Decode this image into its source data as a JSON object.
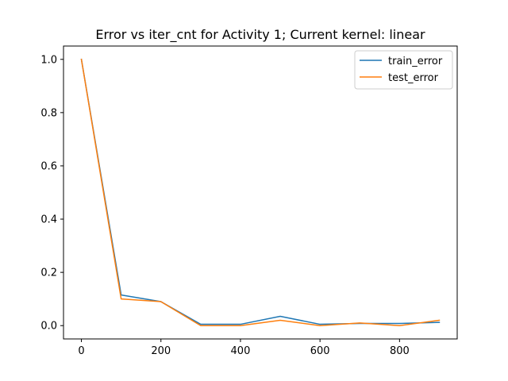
{
  "chart_data": {
    "type": "line",
    "title": "Error vs iter_cnt for Activity 1; Current kernel: linear",
    "xlabel": "",
    "ylabel": "",
    "x": [
      0,
      100,
      200,
      300,
      400,
      500,
      600,
      700,
      800,
      900
    ],
    "series": [
      {
        "name": "train_error",
        "color": "#1f77b4",
        "values": [
          1.0,
          0.115,
          0.09,
          0.005,
          0.005,
          0.035,
          0.005,
          0.008,
          0.008,
          0.012
        ]
      },
      {
        "name": "test_error",
        "color": "#ff7f0e",
        "values": [
          1.0,
          0.1,
          0.09,
          0.0,
          0.0,
          0.02,
          0.0,
          0.01,
          0.0,
          0.02
        ]
      }
    ],
    "xlim": [
      -45,
      945
    ],
    "ylim": [
      -0.05,
      1.05
    ],
    "xticks": [
      0,
      200,
      400,
      600,
      800
    ],
    "yticks": [
      0.0,
      0.2,
      0.4,
      0.6,
      0.8,
      1.0
    ],
    "xtick_labels": [
      "0",
      "200",
      "400",
      "600",
      "800"
    ],
    "ytick_labels": [
      "0.0",
      "0.2",
      "0.4",
      "0.6",
      "0.8",
      "1.0"
    ],
    "grid": false,
    "legend_position": "top-right"
  }
}
